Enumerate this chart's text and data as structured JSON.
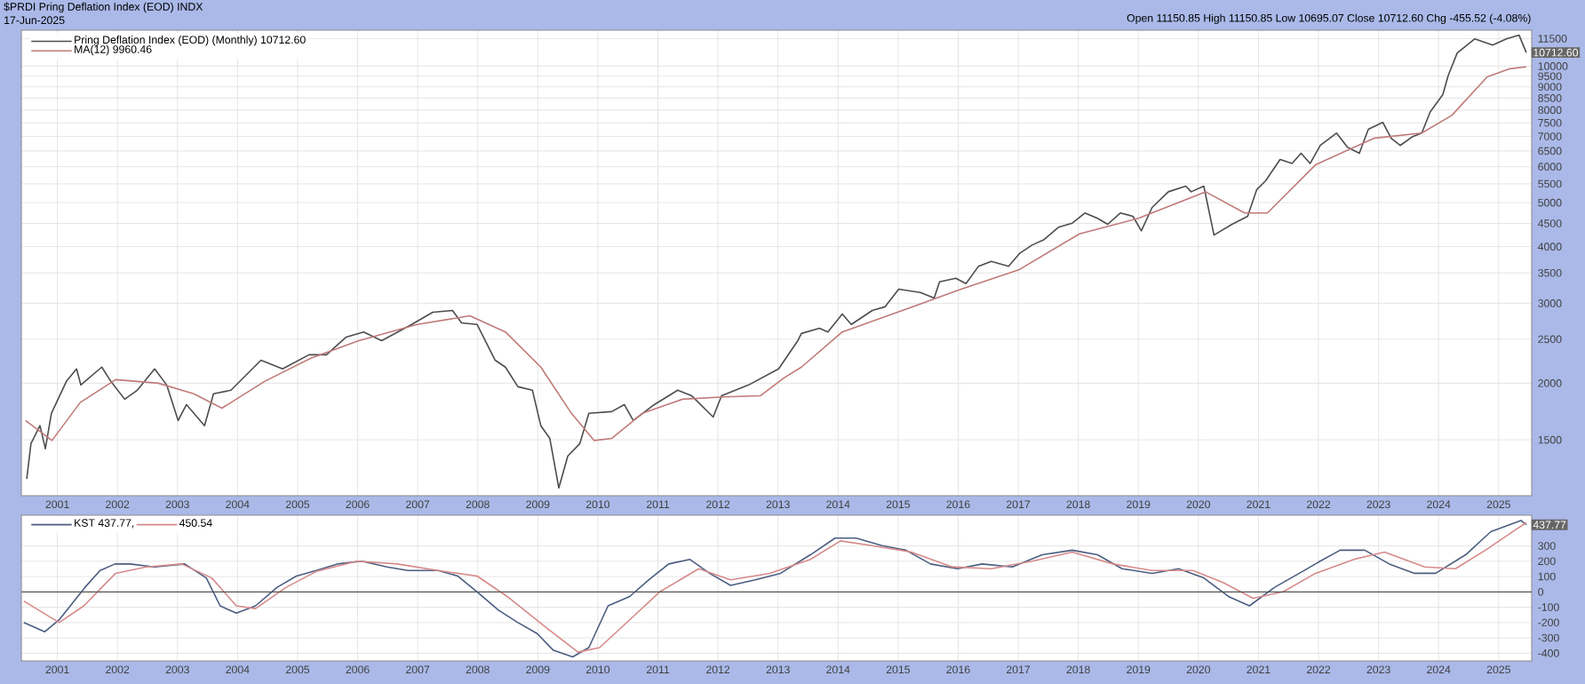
{
  "chart_data": [
    {
      "type": "line",
      "title": "$PRDI Pring Deflation Index (EOD) INDX",
      "subtitle": "17-Jun-2025",
      "annotations": [
        "Open 11150.85 High 11150.85 Low 10695.07 Close 10712.60 Chg -455.52 (-4.08%)",
        {
          "text": "10712.60",
          "x": 2025.46,
          "y": 10712.6
        }
      ],
      "log": "y",
      "grid": true,
      "legend": "top left",
      "xlim": [
        2000.4,
        2025.55
      ],
      "ylim": [
        1130,
        12000
      ],
      "xticks": [
        2001,
        2002,
        2003,
        2004,
        2005,
        2006,
        2007,
        2008,
        2009,
        2010,
        2011,
        2012,
        2013,
        2014,
        2015,
        2016,
        2017,
        2018,
        2019,
        2020,
        2021,
        2022,
        2023,
        2024,
        2025
      ],
      "yticks": [
        1500,
        2000,
        2500,
        3000,
        3500,
        4000,
        4500,
        5000,
        5500,
        6000,
        6500,
        7000,
        7500,
        8000,
        8500,
        9000,
        9500,
        10000,
        11500
      ],
      "series": [
        {
          "name": "Pring Deflation Index (EOD) (Monthly) 10712.60",
          "color": "#4d4d4d",
          "x": [
            2000.49,
            2000.56,
            2000.71,
            2000.8,
            2000.9,
            2001.15,
            2001.32,
            2001.39,
            2001.74,
            2001.89,
            2002.12,
            2002.33,
            2002.62,
            2002.82,
            2003.01,
            2003.15,
            2003.45,
            2003.6,
            2003.89,
            2004.39,
            2004.75,
            2005.19,
            2005.48,
            2005.81,
            2006.1,
            2006.4,
            2006.9,
            2007.25,
            2007.58,
            2007.73,
            2007.99,
            2008.29,
            2008.46,
            2008.67,
            2008.91,
            2009.05,
            2009.2,
            2009.35,
            2009.5,
            2009.7,
            2009.85,
            2010.23,
            2010.44,
            2010.59,
            2010.94,
            2011.33,
            2011.56,
            2011.92,
            2012.06,
            2012.51,
            2013.01,
            2013.33,
            2013.39,
            2013.69,
            2013.83,
            2014.07,
            2014.22,
            2014.57,
            2014.78,
            2015.01,
            2015.37,
            2015.6,
            2015.69,
            2015.96,
            2016.13,
            2016.34,
            2016.55,
            2016.84,
            2017.02,
            2017.23,
            2017.43,
            2017.67,
            2017.9,
            2018.11,
            2018.32,
            2018.49,
            2018.7,
            2018.91,
            2019.05,
            2019.23,
            2019.5,
            2019.79,
            2019.88,
            2020.09,
            2020.26,
            2020.56,
            2020.82,
            2020.97,
            2021.12,
            2021.36,
            2021.56,
            2021.71,
            2021.86,
            2022.03,
            2022.3,
            2022.48,
            2022.68,
            2022.83,
            2023.07,
            2023.21,
            2023.36,
            2023.57,
            2023.72,
            2023.86,
            2024.07,
            2024.16,
            2024.31,
            2024.6,
            2024.9,
            2025.13,
            2025.34,
            2025.46
          ],
          "values": [
            1230,
            1472,
            1612,
            1434,
            1716,
            2018,
            2150,
            1982,
            2170,
            2018,
            1844,
            1930,
            2150,
            1982,
            1655,
            1794,
            1612,
            1896,
            1930,
            2247,
            2150,
            2310,
            2310,
            2528,
            2594,
            2482,
            2694,
            2867,
            2893,
            2716,
            2694,
            2247,
            2170,
            1964,
            1930,
            1612,
            1511,
            1175,
            1382,
            1472,
            1716,
            1731,
            1794,
            1655,
            1794,
            1930,
            1877,
            1684,
            1877,
            1982,
            2150,
            2482,
            2574,
            2644,
            2594,
            2840,
            2694,
            2893,
            2947,
            3223,
            3170,
            3083,
            3346,
            3407,
            3316,
            3622,
            3710,
            3622,
            3862,
            4032,
            4146,
            4414,
            4506,
            4744,
            4617,
            4480,
            4744,
            4665,
            4335,
            4880,
            5284,
            5438,
            5284,
            5438,
            4242,
            4480,
            4665,
            5337,
            5589,
            6227,
            6100,
            6425,
            6100,
            6685,
            7119,
            6629,
            6425,
            7257,
            7517,
            6933,
            6685,
            6995,
            7119,
            7925,
            8656,
            9532,
            10690,
            11480,
            11130,
            11480,
            11700,
            10712.6
          ]
        },
        {
          "name": "MA(12) 9960.46",
          "color": "#c07a7a",
          "x": [
            2000.47,
            2000.91,
            2001.38,
            2001.97,
            2002.68,
            2003.27,
            2003.74,
            2004.45,
            2005.22,
            2006.02,
            2006.99,
            2007.87,
            2008.46,
            2009.05,
            2009.56,
            2009.94,
            2010.23,
            2010.74,
            2011.41,
            2012.12,
            2012.71,
            2013.1,
            2013.39,
            2014.07,
            2015.07,
            2016.05,
            2017.02,
            2018.02,
            2019.0,
            2020.12,
            2020.77,
            2021.15,
            2021.95,
            2022.92,
            2023.72,
            2024.22,
            2024.81,
            2025.19,
            2025.46
          ],
          "values": [
            1655,
            1495,
            1813,
            2036,
            2000,
            1896,
            1762,
            2018,
            2270,
            2482,
            2694,
            2815,
            2594,
            2170,
            1716,
            1495,
            1511,
            1716,
            1844,
            1866,
            1877,
            2055,
            2170,
            2594,
            2893,
            3223,
            3561,
            4268,
            4617,
            5284,
            4744,
            4744,
            6058,
            6933,
            7119,
            7788,
            9466,
            9868,
            9960.46
          ]
        }
      ]
    },
    {
      "type": "line",
      "grid": true,
      "legend": "top left",
      "annotations": [
        {
          "text": "437.77",
          "x": 2025.46,
          "y": 437.77
        }
      ],
      "xlim": [
        2000.4,
        2025.55
      ],
      "ylim": [
        -450,
        500
      ],
      "xticks": [
        2001,
        2002,
        2003,
        2004,
        2005,
        2006,
        2007,
        2008,
        2009,
        2010,
        2011,
        2012,
        2013,
        2014,
        2015,
        2016,
        2017,
        2018,
        2019,
        2020,
        2021,
        2022,
        2023,
        2024,
        2025
      ],
      "yticks": [
        -400,
        -300,
        -200,
        -100,
        0,
        100,
        200,
        300
      ],
      "ref_lines": [
        {
          "axis": "y",
          "value": 0,
          "color": "#555555"
        }
      ],
      "series": [
        {
          "name": "KST 437.77,",
          "color": "#4b5d80",
          "x": [
            2000.44,
            2000.79,
            2001.03,
            2001.46,
            2001.71,
            2001.96,
            2002.21,
            2002.62,
            2003.12,
            2003.48,
            2003.71,
            2003.98,
            2004.3,
            2004.66,
            2004.98,
            2005.31,
            2005.66,
            2006.07,
            2006.49,
            2006.84,
            2007.34,
            2007.67,
            2007.99,
            2008.35,
            2008.67,
            2008.99,
            2009.26,
            2009.58,
            2009.85,
            2010.17,
            2010.53,
            2010.85,
            2011.18,
            2011.53,
            2011.86,
            2012.21,
            2012.62,
            2013.04,
            2013.54,
            2013.95,
            2014.3,
            2014.72,
            2015.13,
            2015.54,
            2015.99,
            2016.4,
            2016.9,
            2017.4,
            2017.9,
            2018.32,
            2018.73,
            2019.23,
            2019.67,
            2020.09,
            2020.5,
            2020.85,
            2021.27,
            2021.68,
            2022.0,
            2022.36,
            2022.77,
            2023.18,
            2023.6,
            2023.95,
            2024.45,
            2024.87,
            2025.37,
            2025.46
          ],
          "values": [
            -200,
            -260,
            -182,
            30,
            139,
            182,
            182,
            163,
            182,
            91,
            -91,
            -139,
            -91,
            30,
            103,
            139,
            182,
            200,
            163,
            139,
            139,
            103,
            0,
            -121,
            -200,
            -272,
            -381,
            -424,
            -363,
            -91,
            -30,
            79,
            182,
            212,
            121,
            42,
            79,
            121,
            242,
            351,
            351,
            303,
            272,
            182,
            151,
            182,
            163,
            242,
            272,
            242,
            151,
            121,
            151,
            91,
            -30,
            -91,
            30,
            121,
            194,
            272,
            272,
            182,
            121,
            121,
            242,
            393,
            466,
            437.77
          ]
        },
        {
          "name": "450.54",
          "color": "#d68a8a",
          "x": [
            2000.44,
            2001.03,
            2001.44,
            2001.97,
            2002.48,
            2003.07,
            2003.57,
            2003.98,
            2004.3,
            2004.81,
            2005.31,
            2005.99,
            2006.66,
            2007.34,
            2007.99,
            2008.49,
            2009.17,
            2009.67,
            2010.03,
            2010.53,
            2011.03,
            2011.68,
            2012.21,
            2012.86,
            2013.54,
            2014.04,
            2014.54,
            2015.22,
            2015.9,
            2016.55,
            2017.23,
            2017.9,
            2018.58,
            2019.23,
            2019.91,
            2020.41,
            2020.91,
            2021.41,
            2021.95,
            2022.59,
            2023.1,
            2023.77,
            2024.28,
            2024.78,
            2025.28,
            2025.46
          ],
          "values": [
            -60,
            -200,
            -91,
            121,
            163,
            182,
            91,
            -91,
            -109,
            30,
            133,
            200,
            182,
            139,
            103,
            -30,
            -242,
            -393,
            -363,
            -182,
            0,
            151,
            79,
            121,
            212,
            333,
            303,
            260,
            163,
            151,
            200,
            260,
            182,
            139,
            139,
            61,
            -42,
            0,
            121,
            212,
            260,
            163,
            151,
            272,
            405,
            450.54
          ]
        }
      ]
    }
  ]
}
